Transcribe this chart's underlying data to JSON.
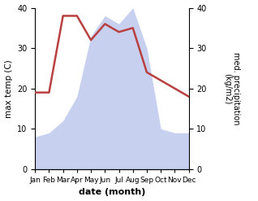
{
  "months": [
    "Jan",
    "Feb",
    "Mar",
    "Apr",
    "May",
    "Jun",
    "Jul",
    "Aug",
    "Sep",
    "Oct",
    "Nov",
    "Dec"
  ],
  "temperature": [
    19,
    19,
    38,
    38,
    32,
    36,
    34,
    35,
    24,
    22,
    20,
    18
  ],
  "precipitation": [
    8,
    9,
    12,
    18,
    33,
    38,
    36,
    40,
    30,
    10,
    9,
    9
  ],
  "temp_color": "#b94040",
  "precip_fill_color": "#c8d0f0",
  "precip_edge_color": "#b0b8e8",
  "xlabel": "date (month)",
  "ylabel_left": "max temp (C)",
  "ylabel_right": "med. precipitation\n(kg/m2)",
  "ylim": [
    0,
    40
  ],
  "yticks": [
    0,
    10,
    20,
    30,
    40
  ],
  "background_color": "#ffffff"
}
